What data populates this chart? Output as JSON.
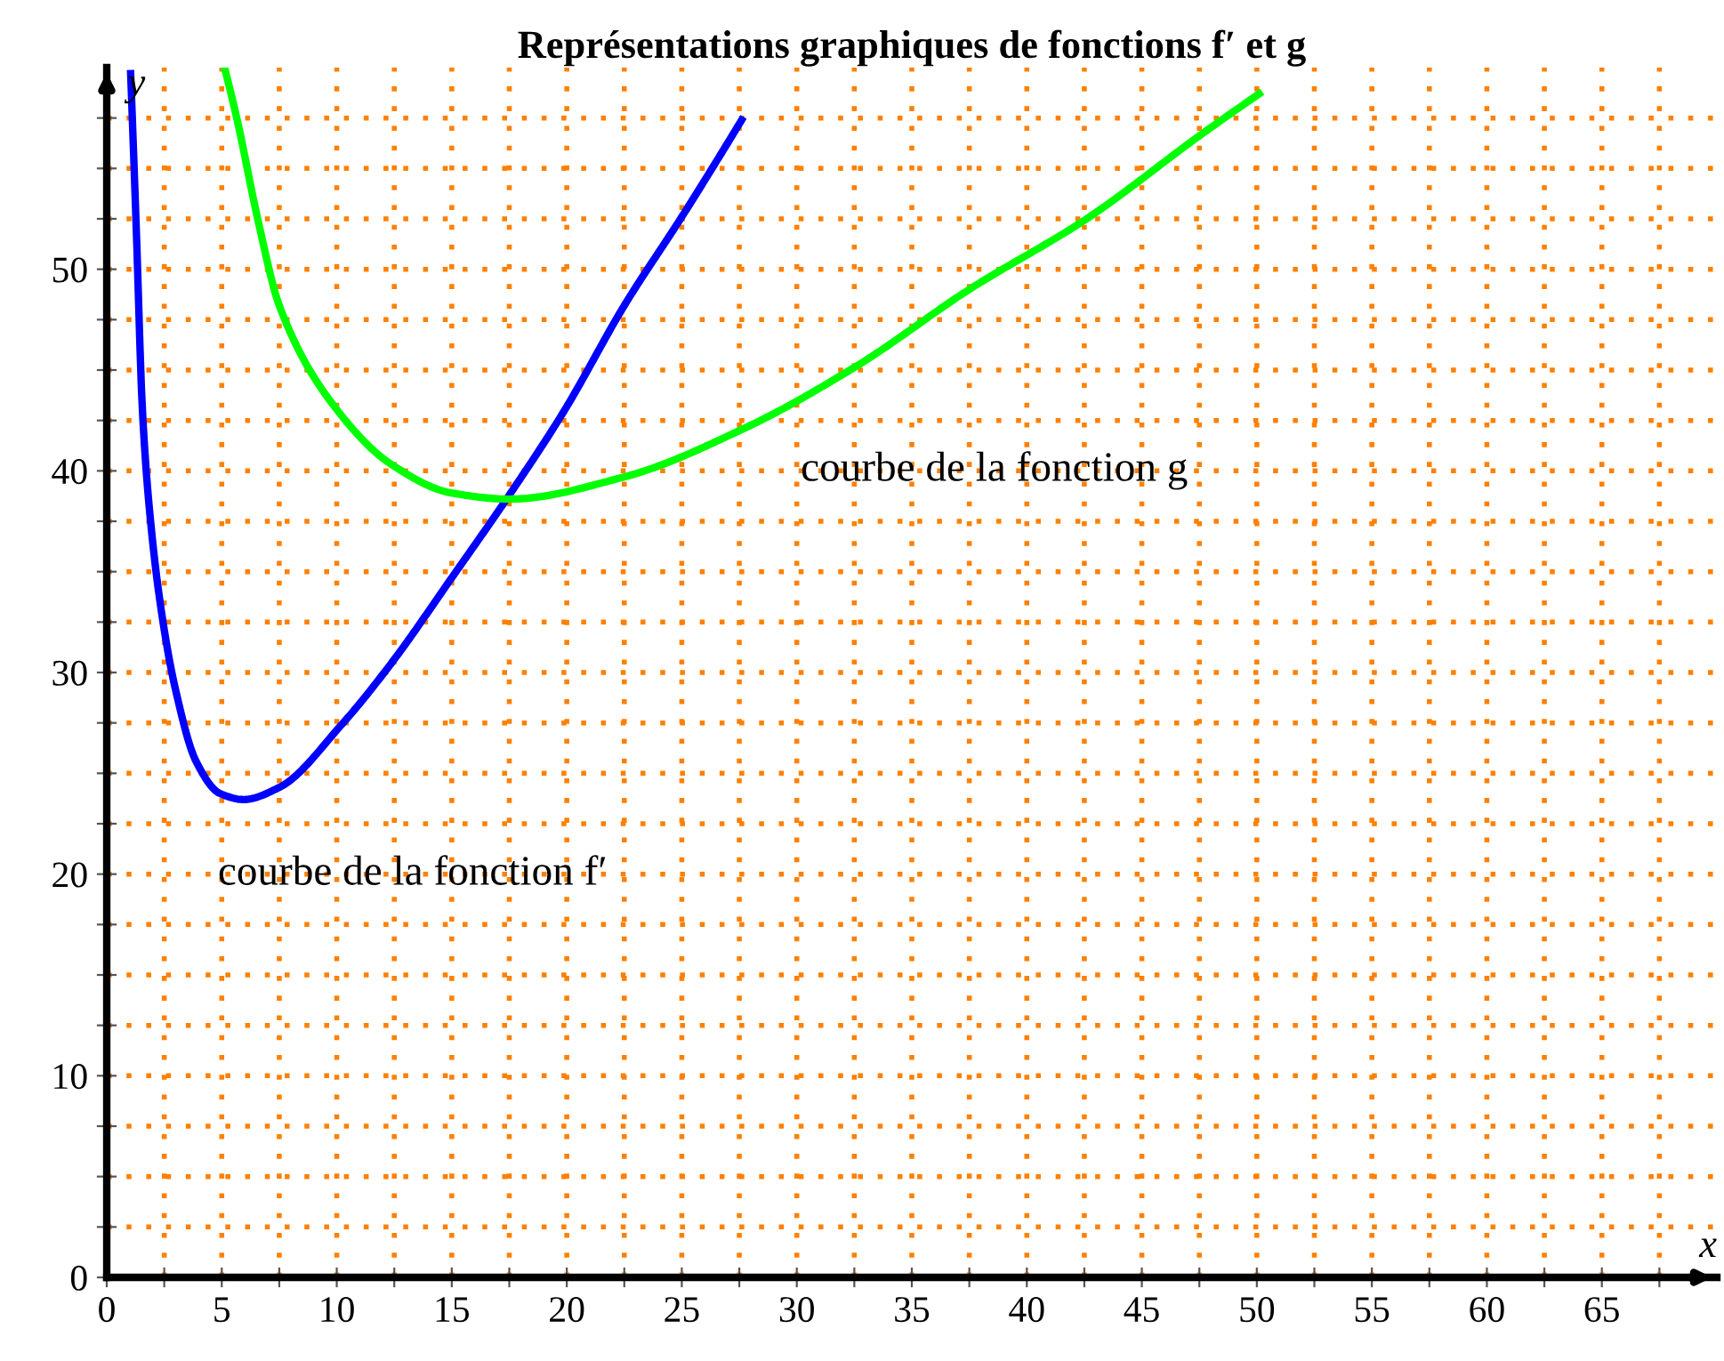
{
  "chart_data": {
    "type": "line",
    "title": "Représentations graphiques de fonctions f′ et g",
    "xlabel": "x",
    "ylabel": "y",
    "xlim": [
      0,
      70
    ],
    "ylim": [
      0,
      60
    ],
    "xticks": [
      0,
      {
        "value": 2.5,
        "label": null
      },
      5,
      {
        "value": 7.5,
        "label": null
      },
      10,
      {
        "value": 12.5,
        "label": null
      },
      15,
      {
        "value": 17.5,
        "label": null
      },
      20,
      {
        "value": 22.5,
        "label": null
      },
      25,
      {
        "value": 27.5,
        "label": null
      },
      30,
      {
        "value": 32.5,
        "label": null
      },
      35,
      {
        "value": 37.5,
        "label": null
      },
      40,
      {
        "value": 42.5,
        "label": null
      },
      45,
      {
        "value": 47.5,
        "label": null
      },
      50,
      {
        "value": 52.5,
        "label": null
      },
      55,
      {
        "value": 57.5,
        "label": null
      },
      60,
      {
        "value": 62.5,
        "label": null
      },
      65,
      {
        "value": 67.5,
        "label": null
      }
    ],
    "yticks": [
      0,
      {
        "value": 2.5,
        "label": null
      },
      {
        "value": 5,
        "label": null
      },
      {
        "value": 7.5,
        "label": null
      },
      10,
      {
        "value": 12.5,
        "label": null
      },
      {
        "value": 15,
        "label": null
      },
      {
        "value": 17.5,
        "label": null
      },
      20,
      {
        "value": 22.5,
        "label": null
      },
      {
        "value": 25,
        "label": null
      },
      {
        "value": 27.5,
        "label": null
      },
      30,
      {
        "value": 32.5,
        "label": null
      },
      {
        "value": 35,
        "label": null
      },
      {
        "value": 37.5,
        "label": null
      },
      40,
      {
        "value": 42.5,
        "label": null
      },
      {
        "value": 45,
        "label": null
      },
      {
        "value": 47.5,
        "label": null
      },
      50,
      {
        "value": 52.5,
        "label": null
      },
      {
        "value": 55,
        "label": null
      },
      {
        "value": 57.5,
        "label": null
      }
    ],
    "grid": true,
    "marker": "none",
    "line_style": "solid",
    "series": [
      {
        "color": "#0000ff",
        "x": [
          1.04,
          1.29,
          1.55,
          1.94,
          2.46,
          2.98,
          3.88,
          4.92,
          5.95,
          7.5,
          10.2,
          12.4,
          15.0,
          17.5,
          19.9,
          22.5,
          25.0,
          27.6
        ],
        "values": [
          59.7,
          51.8,
          43.0,
          37.1,
          32.4,
          29.2,
          25.6,
          24.0,
          23.7,
          24.3,
          27.4,
          30.5,
          34.7,
          38.8,
          43.0,
          48.2,
          52.6,
          57.4
        ]
      },
      {
        "color": "#00ff00",
        "x": [
          5.12,
          5.69,
          6.6,
          7.5,
          9.96,
          12.4,
          15.0,
          17.5,
          22.5,
          27.7,
          32.6,
          37.5,
          42.6,
          47.6,
          50.1
        ],
        "values": [
          60.0,
          57.3,
          52.3,
          48.2,
          43.1,
          40.3,
          38.9,
          38.6,
          39.7,
          42.1,
          45.2,
          49.0,
          52.5,
          56.7,
          58.7
        ]
      }
    ],
    "annotations": [
      "courbe de la fonction g",
      "courbe de la fonction f′"
    ]
  }
}
